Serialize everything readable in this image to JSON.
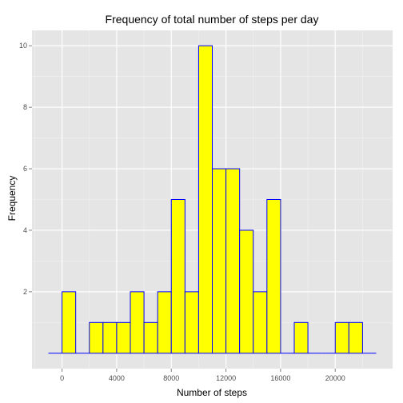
{
  "chart_data": {
    "type": "bar",
    "title": "Frequency of total number of steps per day",
    "xlabel": "Number of steps",
    "ylabel": "Frequency",
    "bin_width": 1000,
    "bins": [
      {
        "start": -1000,
        "end": 0,
        "count": 0
      },
      {
        "start": 0,
        "end": 1000,
        "count": 2
      },
      {
        "start": 1000,
        "end": 2000,
        "count": 0
      },
      {
        "start": 2000,
        "end": 3000,
        "count": 1
      },
      {
        "start": 3000,
        "end": 4000,
        "count": 1
      },
      {
        "start": 4000,
        "end": 5000,
        "count": 1
      },
      {
        "start": 5000,
        "end": 6000,
        "count": 2
      },
      {
        "start": 6000,
        "end": 7000,
        "count": 1
      },
      {
        "start": 7000,
        "end": 8000,
        "count": 2
      },
      {
        "start": 8000,
        "end": 9000,
        "count": 5
      },
      {
        "start": 9000,
        "end": 10000,
        "count": 2
      },
      {
        "start": 10000,
        "end": 11000,
        "count": 10
      },
      {
        "start": 11000,
        "end": 12000,
        "count": 6
      },
      {
        "start": 12000,
        "end": 13000,
        "count": 6
      },
      {
        "start": 13000,
        "end": 14000,
        "count": 4
      },
      {
        "start": 14000,
        "end": 15000,
        "count": 2
      },
      {
        "start": 15000,
        "end": 16000,
        "count": 5
      },
      {
        "start": 16000,
        "end": 17000,
        "count": 0
      },
      {
        "start": 17000,
        "end": 18000,
        "count": 1
      },
      {
        "start": 18000,
        "end": 19000,
        "count": 0
      },
      {
        "start": 19000,
        "end": 20000,
        "count": 0
      },
      {
        "start": 20000,
        "end": 21000,
        "count": 1
      },
      {
        "start": 21000,
        "end": 22000,
        "count": 1
      },
      {
        "start": 22000,
        "end": 23000,
        "count": 0
      }
    ],
    "xlim": [
      -2200,
      24200
    ],
    "ylim": [
      -0.5,
      10.5
    ],
    "x_ticks": [
      0,
      4000,
      8000,
      12000,
      16000,
      20000
    ],
    "x_tick_labels": [
      "0",
      "4000",
      "8000",
      "12000",
      "16000",
      "20000"
    ],
    "y_ticks": [
      2,
      4,
      6,
      8,
      10
    ],
    "y_tick_labels": [
      "2",
      "4",
      "6",
      "8",
      "10"
    ],
    "grid": true,
    "colors": {
      "bar_fill": "#ffff00",
      "bar_outline": "#0000ff",
      "panel_background": "#e5e5e5",
      "grid_major": "#ffffff",
      "grid_minor": "#f2f2f2"
    }
  }
}
